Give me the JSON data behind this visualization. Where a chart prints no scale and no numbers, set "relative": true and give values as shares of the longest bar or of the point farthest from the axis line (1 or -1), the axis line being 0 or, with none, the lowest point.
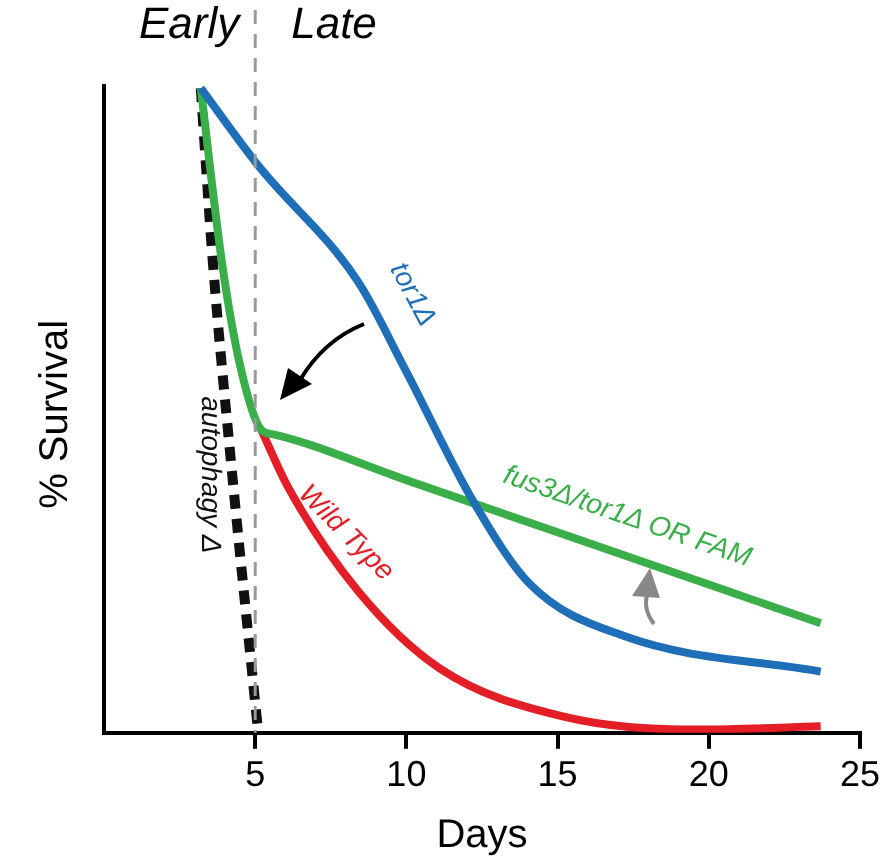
{
  "chart_data": {
    "type": "line",
    "relative": true,
    "xlabel": "Days",
    "ylabel": "% Survival",
    "xlim": [
      0,
      25
    ],
    "xticks": [
      5,
      10,
      15,
      20,
      25
    ],
    "grid": false,
    "legend": false,
    "marker": "none",
    "annotations": [
      "Early",
      "Late"
    ],
    "ref_lines": [
      {
        "axis": "x",
        "value": 5,
        "color": "#999999",
        "line_style": "dashed"
      }
    ],
    "series": [
      {
        "name": "tor1Δ",
        "color": "#1f6fb8",
        "line_style": "solid",
        "x": [
          3.2,
          5.1,
          8.4,
          10,
          12.2,
          14.1,
          17.2,
          23.7
        ],
        "values": [
          1,
          0.88,
          0.7,
          0.56,
          0.36,
          0.23,
          0.15,
          0.095
        ]
      },
      {
        "name": "fus3Δ/tor1Δ OR FAM",
        "color": "#3aae49",
        "line_style": "solid",
        "x": [
          3.2,
          3.9,
          4.5,
          5.2,
          5.6,
          10,
          15,
          20,
          23.7
        ],
        "values": [
          1,
          0.73,
          0.57,
          0.47,
          0.463,
          0.392,
          0.311,
          0.23,
          0.17
        ]
      },
      {
        "name": "Wild Type",
        "color": "#e41e26",
        "line_style": "solid",
        "x": [
          5.2,
          6.1,
          8.4,
          11.1,
          15.2,
          19.7,
          23.7
        ],
        "values": [
          0.47,
          0.38,
          0.22,
          0.1,
          0.025,
          0.005,
          0.01
        ]
      },
      {
        "name": "autophagy Δ",
        "color": "#111111",
        "line_style": "dashed",
        "x": [
          3.2,
          3.6,
          4.2,
          5.1
        ],
        "values": [
          1,
          0.73,
          0.42,
          0
        ]
      }
    ]
  }
}
